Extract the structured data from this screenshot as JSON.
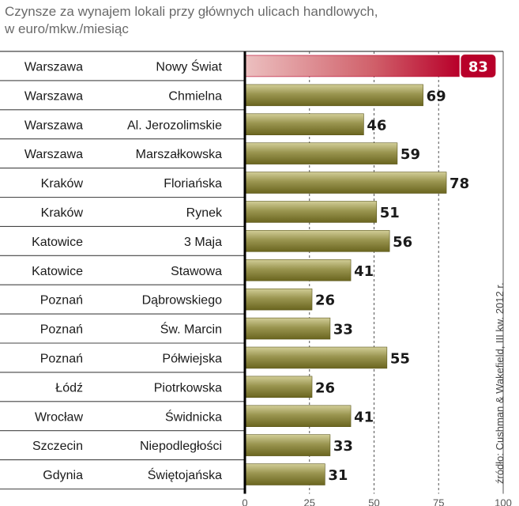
{
  "chart_data": {
    "type": "bar",
    "orientation": "horizontal",
    "title": "Czynsze za wynajem lokali przy głównych ulicach handlowych,",
    "subtitle": "w euro/mkw./miesiąc",
    "source": "źródło: Cushman & Wakefield, III kw. 2012 r.",
    "xlim": [
      0,
      100
    ],
    "xticks": [
      0,
      25,
      50,
      75,
      100
    ],
    "grid": "vertical dashed at 25, 50, 75",
    "rows": [
      {
        "city": "Warszawa",
        "street": "Nowy Świat",
        "value": 83,
        "highlight": true
      },
      {
        "city": "Warszawa",
        "street": "Chmielna",
        "value": 69
      },
      {
        "city": "Warszawa",
        "street": "Al. Jerozolimskie",
        "value": 46
      },
      {
        "city": "Warszawa",
        "street": "Marszałkowska",
        "value": 59
      },
      {
        "city": "Kraków",
        "street": "Floriańska",
        "value": 78
      },
      {
        "city": "Kraków",
        "street": "Rynek",
        "value": 51
      },
      {
        "city": "Katowice",
        "street": "3 Maja",
        "value": 56
      },
      {
        "city": "Katowice",
        "street": "Stawowa",
        "value": 41
      },
      {
        "city": "Poznań",
        "street": "Dąbrowskiego",
        "value": 26
      },
      {
        "city": "Poznań",
        "street": "Św. Marcin",
        "value": 33
      },
      {
        "city": "Poznań",
        "street": "Półwiejska",
        "value": 55
      },
      {
        "city": "Łódź",
        "street": "Piotrkowska",
        "value": 26
      },
      {
        "city": "Wrocław",
        "street": "Świdnicka",
        "value": 41
      },
      {
        "city": "Szczecin",
        "street": "Niepodległości",
        "value": 33
      },
      {
        "city": "Gdynia",
        "street": "Świętojańska",
        "value": 31
      }
    ]
  },
  "colors": {
    "bar_top": "#c9c58a",
    "bar_bottom": "#6f6a22",
    "bar_edge": "#5a561a",
    "highlight_bar_left": "#e7b0b0",
    "highlight_bar_right": "#b8002a",
    "highlight_badge": "#b8002a",
    "row_divider": "#444444",
    "grid": "#555555",
    "axis": "#000000"
  }
}
